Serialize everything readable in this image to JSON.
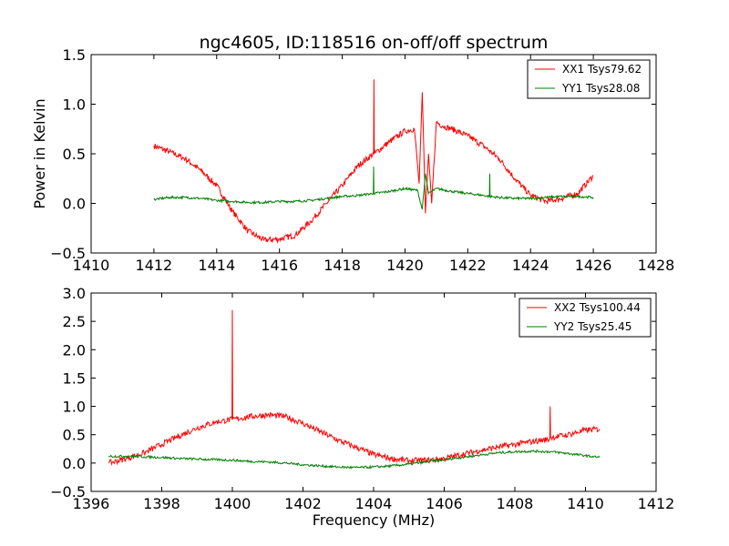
{
  "chart_data": [
    {
      "type": "line",
      "title": "ngc4605, ID:118516 on-off/off spectrum",
      "xlabel": "",
      "ylabel": "Power in Kelvin",
      "xlim": [
        1410,
        1428
      ],
      "ylim": [
        -0.5,
        1.5
      ],
      "xticks": [
        "1410",
        "1412",
        "1414",
        "1416",
        "1418",
        "1420",
        "1422",
        "1424",
        "1426",
        "1428"
      ],
      "yticks": [
        "−0.5",
        "0.0",
        "0.5",
        "1.0",
        "1.5"
      ],
      "legend_position": "top-right",
      "grid": false,
      "series": [
        {
          "name": "XX1 Tsys79.62",
          "color": "#ff0000",
          "x": [
            1412.0,
            1412.5,
            1413.0,
            1413.5,
            1414.0,
            1414.5,
            1415.0,
            1415.5,
            1416.0,
            1416.5,
            1417.0,
            1417.5,
            1418.0,
            1418.5,
            1419.0,
            1419.01,
            1419.02,
            1419.5,
            1420.0,
            1420.3,
            1420.45,
            1420.55,
            1420.65,
            1420.75,
            1420.85,
            1421.0,
            1421.2,
            1421.5,
            1422.0,
            1422.5,
            1423.0,
            1423.5,
            1424.0,
            1424.5,
            1425.0,
            1425.5,
            1426.0
          ],
          "y": [
            0.58,
            0.52,
            0.45,
            0.33,
            0.18,
            -0.08,
            -0.28,
            -0.37,
            -0.36,
            -0.32,
            -0.18,
            0.0,
            0.18,
            0.38,
            0.5,
            1.25,
            0.5,
            0.62,
            0.73,
            0.75,
            0.2,
            1.12,
            -0.1,
            0.5,
            0.0,
            0.82,
            0.78,
            0.75,
            0.68,
            0.58,
            0.45,
            0.25,
            0.08,
            0.02,
            0.05,
            0.1,
            0.28
          ]
        },
        {
          "name": "YY1 Tsys28.08",
          "color": "#008000",
          "x": [
            1412.0,
            1412.5,
            1413.0,
            1413.5,
            1414.0,
            1414.5,
            1415.0,
            1415.5,
            1416.0,
            1416.5,
            1417.0,
            1417.5,
            1418.0,
            1418.5,
            1418.99,
            1419.0,
            1419.01,
            1419.5,
            1420.0,
            1420.4,
            1420.55,
            1420.65,
            1420.75,
            1421.0,
            1421.5,
            1422.0,
            1422.5,
            1422.69,
            1422.7,
            1422.71,
            1423.0,
            1423.5,
            1424.0,
            1424.5,
            1425.0,
            1425.5,
            1426.0
          ],
          "y": [
            0.04,
            0.06,
            0.06,
            0.05,
            0.03,
            0.02,
            0.01,
            0.01,
            0.02,
            0.02,
            0.03,
            0.05,
            0.07,
            0.08,
            0.1,
            0.37,
            0.1,
            0.12,
            0.15,
            0.13,
            -0.06,
            0.3,
            0.1,
            0.15,
            0.12,
            0.1,
            0.08,
            0.07,
            0.3,
            0.07,
            0.06,
            0.05,
            0.05,
            0.06,
            0.07,
            0.07,
            0.06
          ]
        }
      ]
    },
    {
      "type": "line",
      "title": "",
      "xlabel": "Frequency (MHz)",
      "ylabel": "",
      "xlim": [
        1396,
        1412
      ],
      "ylim": [
        -0.5,
        3.0
      ],
      "xticks": [
        "1396",
        "1398",
        "1400",
        "1402",
        "1404",
        "1406",
        "1408",
        "1410",
        "1412"
      ],
      "yticks": [
        "−0.5",
        "0.0",
        "0.5",
        "1.0",
        "1.5",
        "2.0",
        "2.5",
        "3.0"
      ],
      "legend_position": "top-right",
      "grid": false,
      "series": [
        {
          "name": "XX2 Tsys100.44",
          "color": "#ff0000",
          "x": [
            1396.5,
            1397.0,
            1397.5,
            1398.0,
            1398.5,
            1399.0,
            1399.5,
            1399.99,
            1400.0,
            1400.01,
            1400.5,
            1401.0,
            1401.5,
            1402.0,
            1402.5,
            1403.0,
            1403.5,
            1404.0,
            1404.5,
            1405.0,
            1405.5,
            1406.0,
            1406.5,
            1407.0,
            1407.5,
            1408.0,
            1408.5,
            1408.99,
            1409.0,
            1409.01,
            1409.5,
            1410.0,
            1410.4
          ],
          "y": [
            0.0,
            0.08,
            0.18,
            0.33,
            0.48,
            0.62,
            0.72,
            0.77,
            2.7,
            0.77,
            0.82,
            0.85,
            0.82,
            0.7,
            0.55,
            0.4,
            0.28,
            0.15,
            0.08,
            0.04,
            0.05,
            0.08,
            0.15,
            0.22,
            0.28,
            0.33,
            0.38,
            0.42,
            1.0,
            0.45,
            0.5,
            0.58,
            0.6
          ]
        },
        {
          "name": "YY2 Tsys25.45",
          "color": "#008000",
          "x": [
            1396.5,
            1397.0,
            1397.5,
            1398.0,
            1398.5,
            1399.0,
            1399.5,
            1400.0,
            1400.5,
            1401.0,
            1401.5,
            1402.0,
            1402.5,
            1403.0,
            1403.5,
            1404.0,
            1404.5,
            1405.0,
            1405.5,
            1406.0,
            1406.5,
            1407.0,
            1407.5,
            1408.0,
            1408.5,
            1409.0,
            1409.5,
            1410.0,
            1410.4
          ],
          "y": [
            0.12,
            0.12,
            0.11,
            0.1,
            0.08,
            0.07,
            0.06,
            0.05,
            0.03,
            0.02,
            0.0,
            -0.03,
            -0.05,
            -0.07,
            -0.08,
            -0.07,
            -0.05,
            -0.02,
            0.02,
            0.06,
            0.1,
            0.14,
            0.18,
            0.2,
            0.21,
            0.2,
            0.17,
            0.13,
            0.1
          ]
        }
      ]
    }
  ]
}
